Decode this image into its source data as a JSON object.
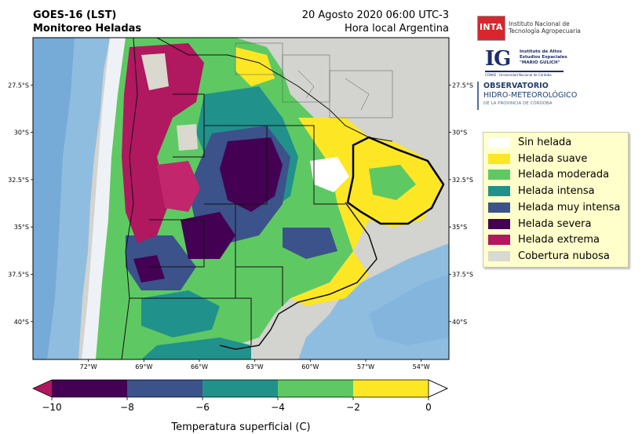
{
  "header": {
    "title_line1": "GOES-16 (LST)",
    "title_line2": "Monitoreo Heladas",
    "date_line": "20 Agosto 2020 06:00 UTC-3",
    "timezone_line": "Hora local Argentina"
  },
  "map": {
    "region": "Argentina central-norte",
    "lon_range": [
      -75,
      -52.5
    ],
    "lat_range": [
      -42,
      -25
    ],
    "lon_ticks": [
      "72°W",
      "69°W",
      "66°W",
      "63°W",
      "60°W",
      "57°W",
      "54°W"
    ],
    "lat_ticks": [
      "27.5°S",
      "30°S",
      "32.5°S",
      "35°S",
      "37.5°S",
      "40°S"
    ],
    "ocean_color": "#d4d4d0",
    "land_color": "#cdcdc4"
  },
  "legend": {
    "items": [
      {
        "label": "Sin helada",
        "color": "#ffffff"
      },
      {
        "label": "Helada suave",
        "color": "#fde725"
      },
      {
        "label": "Helada moderada",
        "color": "#5ec962"
      },
      {
        "label": "Helada intensa",
        "color": "#21918c"
      },
      {
        "label": "Helada muy intensa",
        "color": "#3b528b"
      },
      {
        "label": "Helada severa",
        "color": "#440154"
      },
      {
        "label": "Helada extrema",
        "color": "#b0185f"
      },
      {
        "label": "Cobertura nubosa",
        "color": "#d9d9d0"
      }
    ]
  },
  "colorbar": {
    "label": "Temperatura superficial (C)",
    "ticks": [
      "−10",
      "−8",
      "−6",
      "−4",
      "−2",
      "0"
    ],
    "segments": [
      "#440154",
      "#3b528b",
      "#21918c",
      "#5ec962",
      "#fde725"
    ],
    "under_color": "#b0185f",
    "over_color": "#ffffff",
    "range": [
      -10,
      0
    ]
  },
  "logos": {
    "inta_mark": "INTA",
    "inta_name_1": "Instituto Nacional de",
    "inta_name_2": "Tecnología Agropecuaria",
    "ig_mark": "IG",
    "ig_name_1": "Instituto de Altos",
    "ig_name_2": "Estudios Espaciales",
    "ig_name_3": "\"MARIO GULICH\"",
    "ig_sub": "CONAE · Universidad Nacional de Córdoba",
    "obs_line1": "OBSERVATORIO",
    "obs_line2": "HIDRO-METEOROLÓGICO",
    "obs_line3": "DE LA PROVINCIA DE CÓRDOBA"
  }
}
